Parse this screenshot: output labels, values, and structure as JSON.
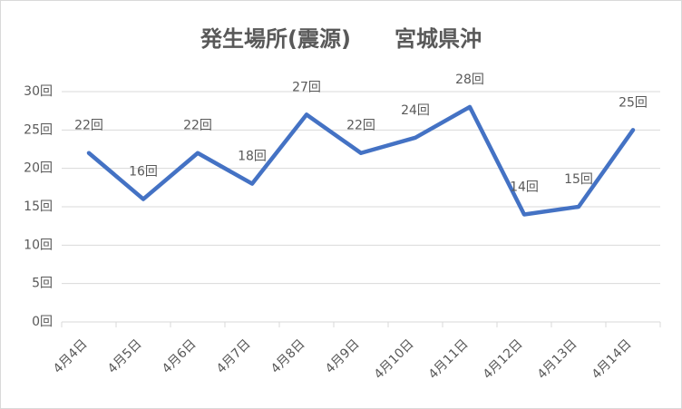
{
  "chart_data": {
    "type": "line",
    "title": "発生場所(震源)　　宮城県沖",
    "categories": [
      "4月4日",
      "4月5日",
      "4月6日",
      "4月7日",
      "4月8日",
      "4月9日",
      "4月10日",
      "4月11日",
      "4月12日",
      "4月13日",
      "4月14日"
    ],
    "values": [
      22,
      16,
      22,
      18,
      27,
      22,
      24,
      28,
      14,
      15,
      25
    ],
    "value_labels": [
      "22回",
      "16回",
      "22回",
      "18回",
      "27回",
      "22回",
      "24回",
      "28回",
      "14回",
      "15回",
      "25回"
    ],
    "color": "#4472c4",
    "ylim": [
      0,
      30
    ],
    "yticks": [
      {
        "value": 0,
        "label": "0回"
      },
      {
        "value": 5,
        "label": "5回"
      },
      {
        "value": 10,
        "label": "10回"
      },
      {
        "value": 15,
        "label": "15回"
      },
      {
        "value": 20,
        "label": "20回"
      },
      {
        "value": 25,
        "label": "25回"
      },
      {
        "value": 30,
        "label": "30回"
      }
    ],
    "grid": true
  }
}
